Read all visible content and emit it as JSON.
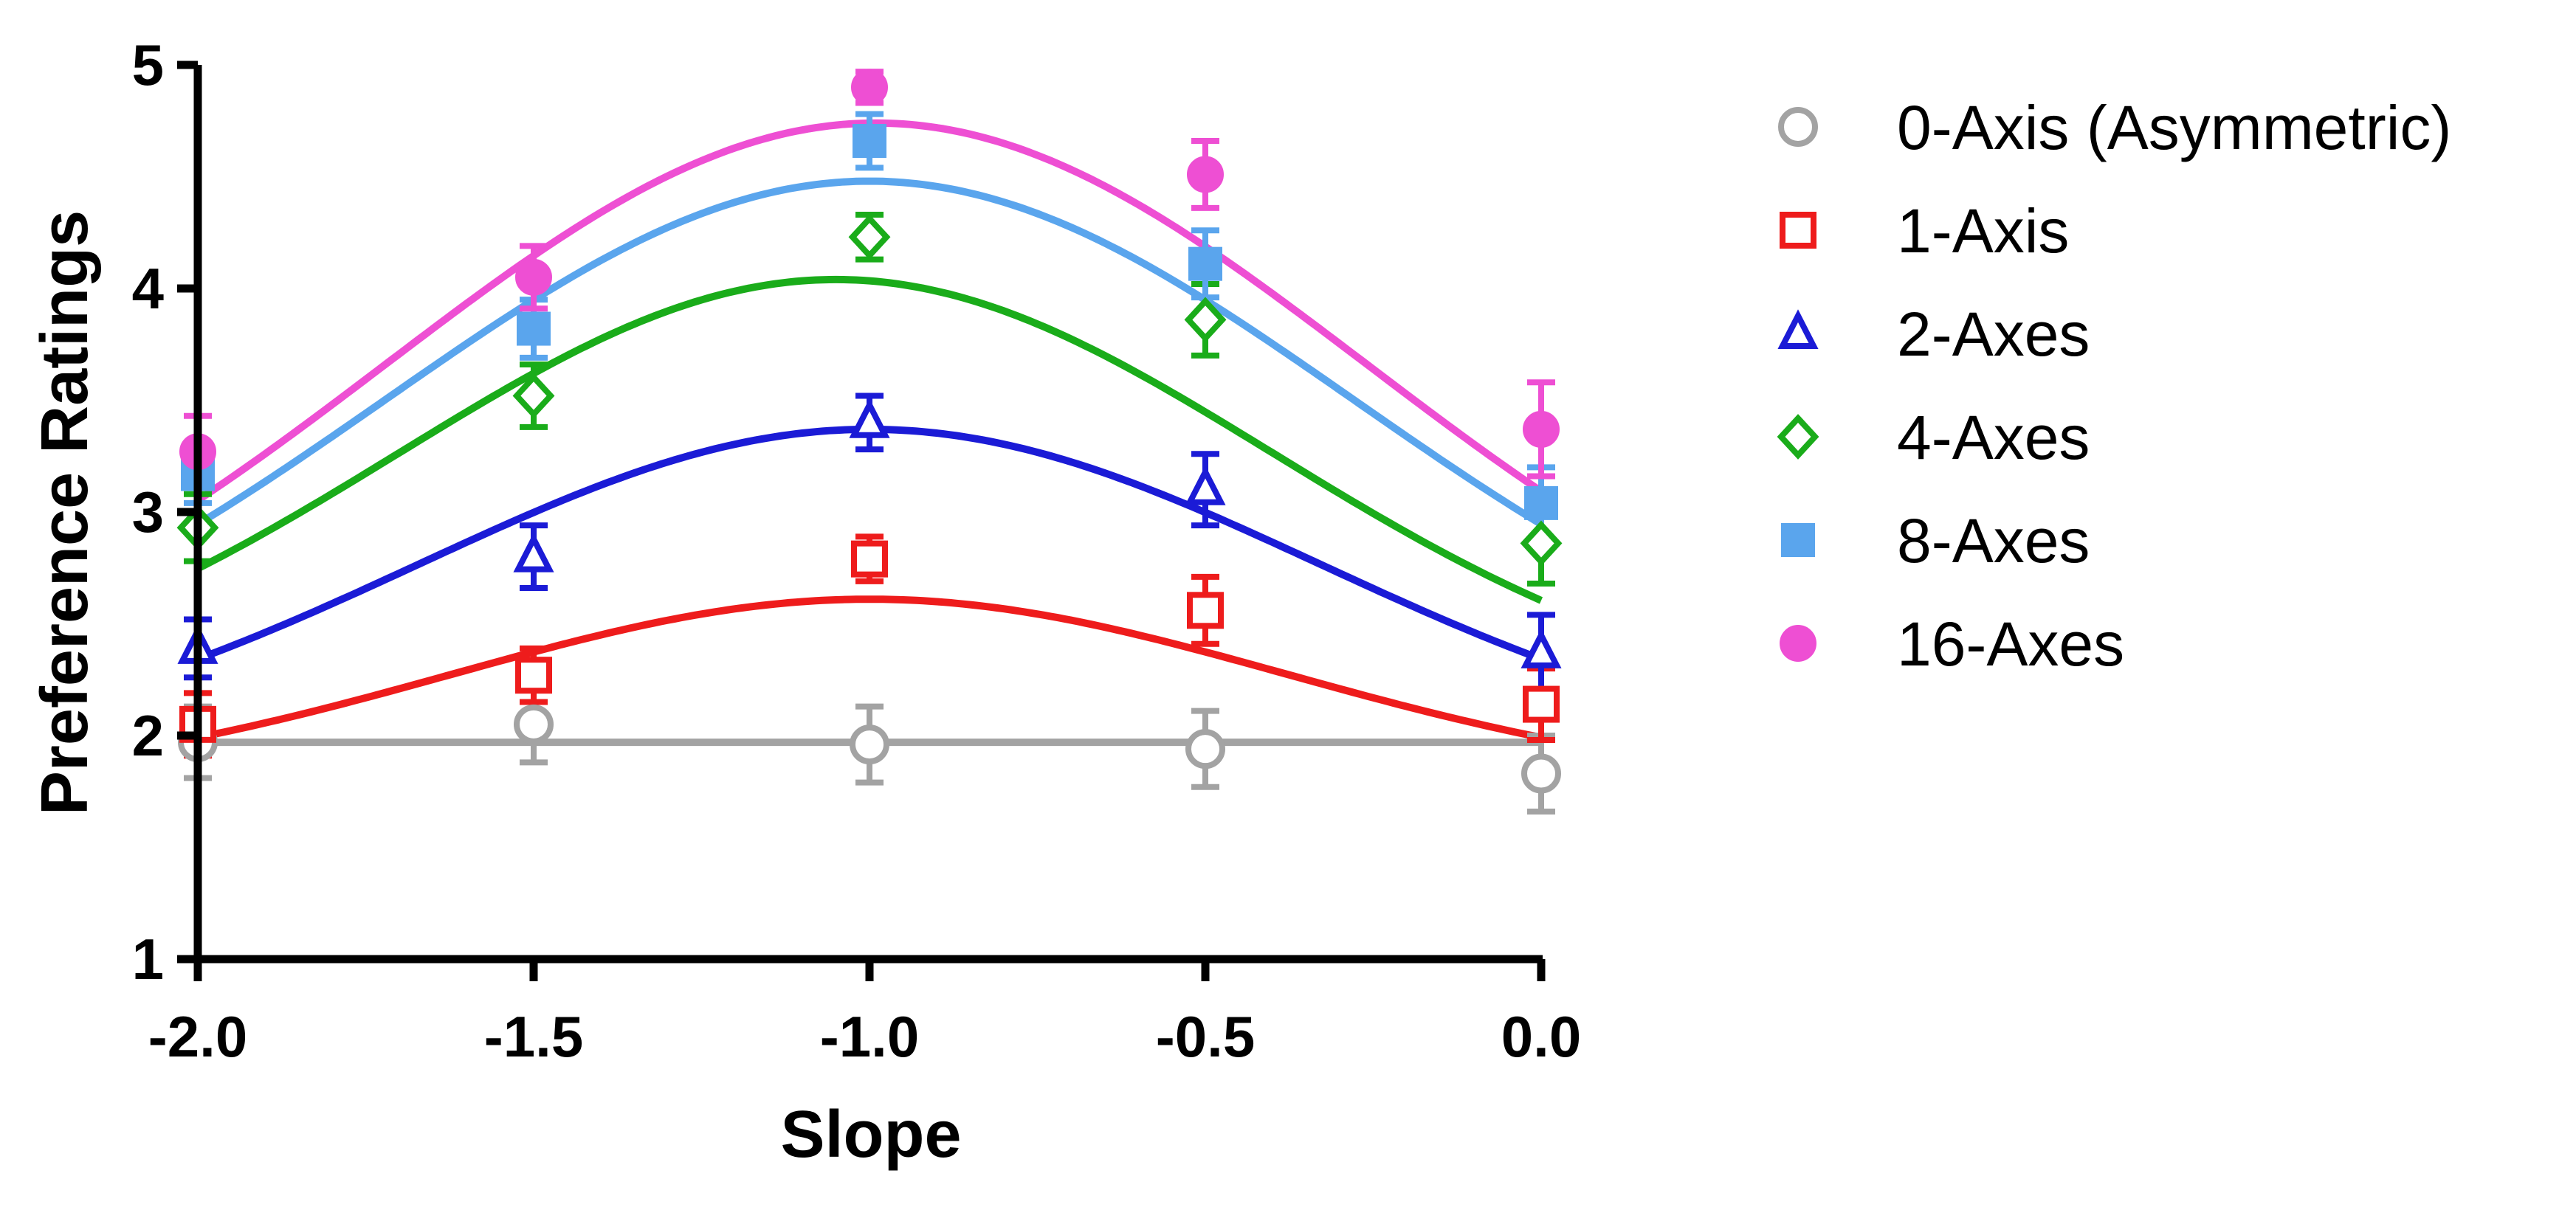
{
  "chart_data": {
    "type": "scatter",
    "title": "",
    "xlabel": "Slope",
    "ylabel": "Preference Ratings",
    "xlim": [
      -2.0,
      0.0
    ],
    "ylim": [
      1,
      5
    ],
    "xticks": [
      "-2.0",
      "-1.5",
      "-1.0",
      "-0.5",
      "0.0"
    ],
    "yticks": [
      "1",
      "2",
      "3",
      "4",
      "5"
    ],
    "legend_position": "right",
    "x": [
      -2.0,
      -1.5,
      -1.0,
      -0.5,
      0.0
    ],
    "series": [
      {
        "name": "0-Axis (Asymmetric)",
        "color": "#a3a3a3",
        "marker": "open-circle",
        "values": [
          1.97,
          2.05,
          1.96,
          1.94,
          1.83
        ],
        "errors": [
          0.16,
          0.17,
          0.17,
          0.17,
          0.17
        ],
        "fit": {
          "type": "horizontal",
          "value": 1.97
        }
      },
      {
        "name": "1-Axis",
        "color": "#ee1c1c",
        "marker": "open-square",
        "values": [
          2.05,
          2.27,
          2.79,
          2.56,
          2.14
        ],
        "errors": [
          0.14,
          0.12,
          0.1,
          0.15,
          0.16
        ],
        "fit": {
          "type": "gaussian",
          "base": 1.76,
          "peak": 2.61,
          "center": -1.0,
          "sigma": 0.62
        }
      },
      {
        "name": "2-Axes",
        "color": "#1b1bd6",
        "marker": "open-triangle",
        "values": [
          2.39,
          2.8,
          3.4,
          3.1,
          2.37
        ],
        "errors": [
          0.13,
          0.14,
          0.12,
          0.16,
          0.17
        ],
        "fit": {
          "type": "gaussian",
          "base": 1.84,
          "peak": 3.37,
          "center": -1.0,
          "sigma": 0.67
        }
      },
      {
        "name": "4-Axes",
        "color": "#1aac1a",
        "marker": "open-diamond",
        "values": [
          2.93,
          3.52,
          4.23,
          3.86,
          2.86
        ],
        "errors": [
          0.15,
          0.14,
          0.1,
          0.16,
          0.18
        ],
        "fit": {
          "type": "gaussian",
          "base": 2.07,
          "peak": 4.04,
          "center": -1.05,
          "sigma": 0.65
        }
      },
      {
        "name": "8-Axes",
        "color": "#5aa5ed",
        "marker": "filled-square",
        "values": [
          3.17,
          3.82,
          4.66,
          4.11,
          3.04
        ],
        "errors": [
          0.13,
          0.13,
          0.12,
          0.15,
          0.16
        ],
        "fit": {
          "type": "gaussian",
          "base": 2.0,
          "peak": 4.48,
          "center": -1.0,
          "sigma": 0.72
        }
      },
      {
        "name": "16-Axes",
        "color": "#ee4fd3",
        "marker": "filled-circle",
        "values": [
          3.27,
          4.05,
          4.9,
          4.51,
          3.37
        ],
        "errors": [
          0.16,
          0.14,
          0.07,
          0.15,
          0.21
        ],
        "fit": {
          "type": "gaussian",
          "base": 2.0,
          "peak": 4.74,
          "center": -0.99,
          "sigma": 0.73
        }
      }
    ]
  }
}
